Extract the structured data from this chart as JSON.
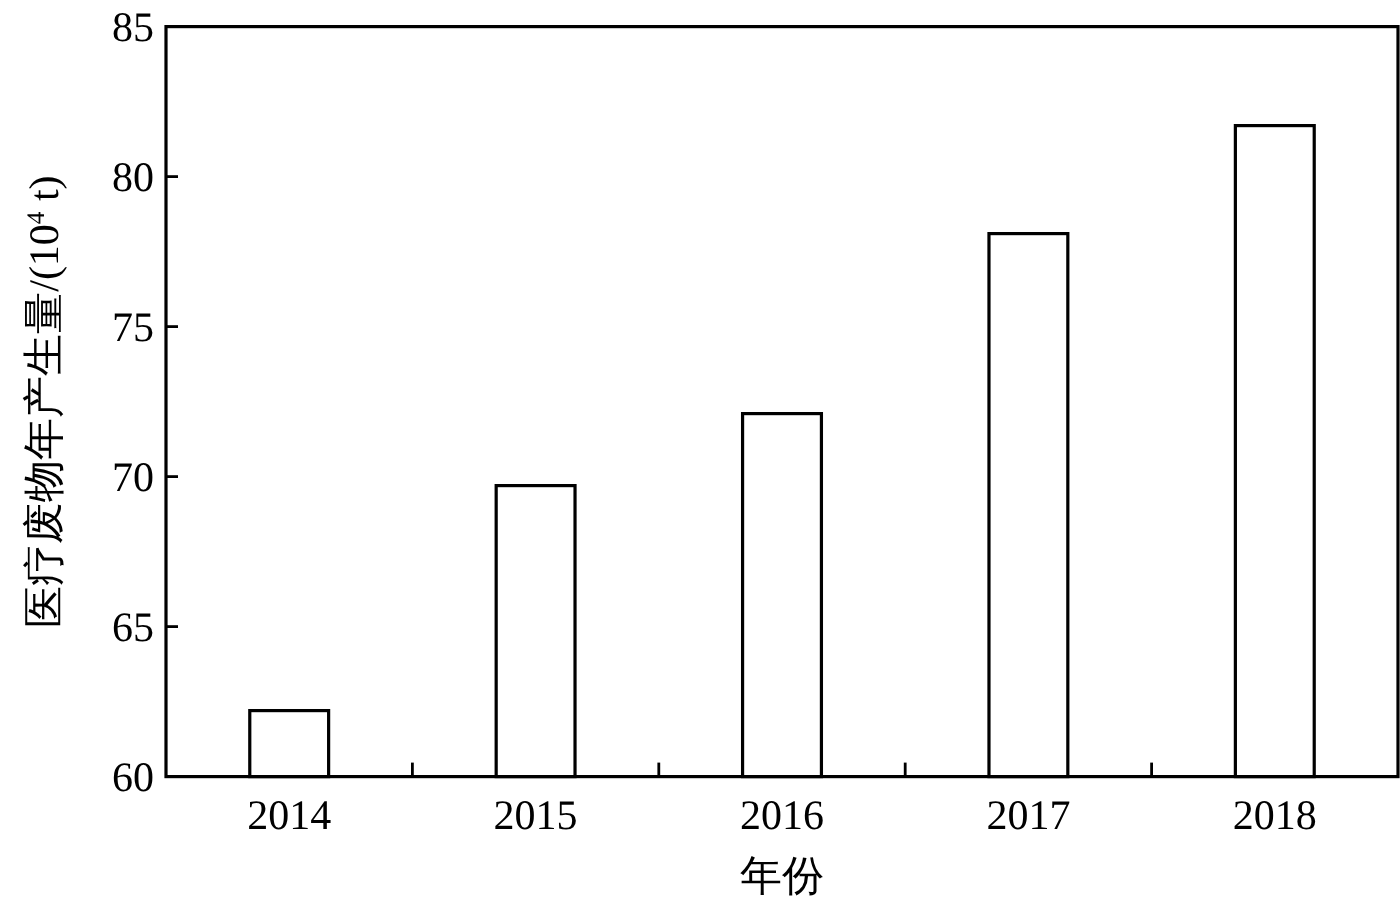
{
  "chart_data": {
    "type": "bar",
    "xlabel": "年份",
    "ylabel": "医疗废物年产生量/(10$^{4}$ t)",
    "categories": [
      "2014",
      "2015",
      "2016",
      "2017",
      "2018"
    ],
    "values": [
      62.2,
      69.7,
      72.1,
      78.1,
      81.7
    ],
    "color": "#ffffff",
    "ylim": [
      60,
      85
    ],
    "yticks": [
      60,
      65,
      70,
      75,
      80,
      85
    ]
  }
}
